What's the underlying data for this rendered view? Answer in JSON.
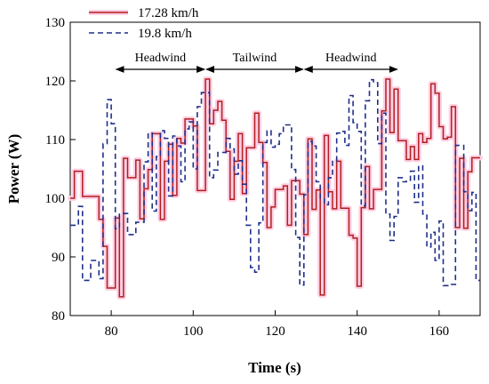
{
  "chart_data": {
    "type": "line",
    "xlabel": "Time (s)",
    "ylabel": "Power (W)",
    "xlim": [
      70,
      170
    ],
    "ylim": [
      80,
      130
    ],
    "x_ticks": [
      80,
      100,
      120,
      140,
      160
    ],
    "y_ticks": [
      80,
      90,
      100,
      110,
      120,
      130
    ],
    "grid": false,
    "legend_position": "top-left",
    "series": [
      {
        "name": "17.28 km/h",
        "color": "#b01e1e",
        "halo_color": "#ffcfe4",
        "line_style": "solid",
        "step": true,
        "points": [
          [
            70,
            100
          ],
          [
            71,
            104.6
          ],
          [
            73,
            100.3
          ],
          [
            77,
            96.4
          ],
          [
            78,
            91.8
          ],
          [
            79,
            84.7
          ],
          [
            81,
            96.6
          ],
          [
            82,
            83.2
          ],
          [
            83,
            106.8
          ],
          [
            84,
            103.5
          ],
          [
            86,
            106.5
          ],
          [
            87,
            96.5
          ],
          [
            88,
            101.6
          ],
          [
            89,
            104.9
          ],
          [
            90,
            111
          ],
          [
            92,
            96.4
          ],
          [
            93,
            106.3
          ],
          [
            94,
            109.2
          ],
          [
            95,
            100.5
          ],
          [
            96,
            110.2
          ],
          [
            97,
            109.4
          ],
          [
            98,
            113.5
          ],
          [
            100,
            112.3
          ],
          [
            101,
            101.3
          ],
          [
            103,
            120.3
          ],
          [
            104,
            112.7
          ],
          [
            105,
            115
          ],
          [
            106,
            116.5
          ],
          [
            107,
            113.3
          ],
          [
            108,
            108
          ],
          [
            109,
            99.8
          ],
          [
            110,
            106.3
          ],
          [
            111,
            111
          ],
          [
            112,
            100.8
          ],
          [
            113,
            108.6
          ],
          [
            115,
            114.5
          ],
          [
            116,
            109.5
          ],
          [
            117,
            106.1
          ],
          [
            118,
            95
          ],
          [
            119,
            98.5
          ],
          [
            120,
            101.5
          ],
          [
            122,
            102.1
          ],
          [
            123,
            95.4
          ],
          [
            124,
            103
          ],
          [
            126,
            100.7
          ],
          [
            127,
            93.8
          ],
          [
            128,
            110.1
          ],
          [
            129,
            98.1
          ],
          [
            130,
            101.4
          ],
          [
            131,
            83.5
          ],
          [
            132,
            110.7
          ],
          [
            133,
            101.1
          ],
          [
            134,
            98.2
          ],
          [
            135,
            106.3
          ],
          [
            136,
            98.3
          ],
          [
            138,
            93.7
          ],
          [
            139,
            93.2
          ],
          [
            140,
            85
          ],
          [
            141,
            98.4
          ],
          [
            142,
            105.4
          ],
          [
            143,
            98.2
          ],
          [
            144,
            101.5
          ],
          [
            146,
            114.9
          ],
          [
            147,
            120.3
          ],
          [
            148,
            111.2
          ],
          [
            149,
            118.6
          ],
          [
            150,
            109.8
          ],
          [
            152,
            106.6
          ],
          [
            153,
            108.8
          ],
          [
            154,
            106.6
          ],
          [
            155,
            111
          ],
          [
            156,
            109.5
          ],
          [
            157,
            110.2
          ],
          [
            158,
            119.5
          ],
          [
            159,
            117.9
          ],
          [
            160,
            112.2
          ],
          [
            161,
            110.1
          ],
          [
            162,
            110.4
          ],
          [
            163,
            115.6
          ],
          [
            164,
            95
          ],
          [
            165,
            106.8
          ],
          [
            166,
            94.9
          ],
          [
            167,
            104.5
          ],
          [
            168,
            106.9
          ],
          [
            170,
            106.9
          ]
        ]
      },
      {
        "name": "19.8 km/h",
        "color": "#1f2f8a",
        "line_style": "dashed",
        "step": true,
        "points": [
          [
            70,
            95.4
          ],
          [
            72,
            98.6
          ],
          [
            73,
            86
          ],
          [
            75,
            89.4
          ],
          [
            77,
            86.3
          ],
          [
            78,
            109.3
          ],
          [
            79,
            116.8
          ],
          [
            80,
            112.7
          ],
          [
            81,
            94.8
          ],
          [
            82,
            97.4
          ],
          [
            84,
            93.8
          ],
          [
            86,
            95.9
          ],
          [
            88,
            106.2
          ],
          [
            89,
            111.1
          ],
          [
            90,
            97.8
          ],
          [
            91,
            107.1
          ],
          [
            92,
            111.5
          ],
          [
            93,
            110.2
          ],
          [
            94,
            100.4
          ],
          [
            95,
            110.6
          ],
          [
            96,
            108.9
          ],
          [
            97,
            102.8
          ],
          [
            98,
            111.8
          ],
          [
            99,
            113
          ],
          [
            100,
            105
          ],
          [
            101,
            115.6
          ],
          [
            102,
            118
          ],
          [
            104,
            103.5
          ],
          [
            105,
            104.8
          ],
          [
            106,
            107.8
          ],
          [
            108,
            110.2
          ],
          [
            109,
            108.4
          ],
          [
            110,
            104.1
          ],
          [
            111,
            106.4
          ],
          [
            112,
            102.4
          ],
          [
            113,
            95.4
          ],
          [
            114,
            88.2
          ],
          [
            115,
            87.4
          ],
          [
            116,
            95.8
          ],
          [
            117,
            109.5
          ],
          [
            118,
            111.5
          ],
          [
            119,
            108.7
          ],
          [
            120,
            109.2
          ],
          [
            121,
            111
          ],
          [
            122,
            112.5
          ],
          [
            124,
            104.9
          ],
          [
            125,
            93.3
          ],
          [
            126,
            85.2
          ],
          [
            127,
            100.6
          ],
          [
            128,
            109.7
          ],
          [
            129,
            108.9
          ],
          [
            130,
            102.8
          ],
          [
            131,
            100
          ],
          [
            132,
            98.9
          ],
          [
            133,
            103.5
          ],
          [
            134,
            106.3
          ],
          [
            135,
            111.1
          ],
          [
            136,
            111.4
          ],
          [
            137,
            109
          ],
          [
            138,
            117.5
          ],
          [
            139,
            112.9
          ],
          [
            140,
            111.4
          ],
          [
            141,
            98.7
          ],
          [
            142,
            116.6
          ],
          [
            143,
            120.2
          ],
          [
            144,
            119.7
          ],
          [
            145,
            109.3
          ],
          [
            146,
            114.5
          ],
          [
            147,
            97.3
          ],
          [
            148,
            92.8
          ],
          [
            149,
            96.9
          ],
          [
            150,
            103.5
          ],
          [
            151,
            102.8
          ],
          [
            152,
            102.9
          ],
          [
            153,
            104.6
          ],
          [
            154,
            99.3
          ],
          [
            155,
            105.5
          ],
          [
            156,
            97.3
          ],
          [
            157,
            91.7
          ],
          [
            158,
            94.2
          ],
          [
            159,
            89.4
          ],
          [
            160,
            96.1
          ],
          [
            161,
            85.1
          ],
          [
            163,
            85.3
          ],
          [
            164,
            109
          ],
          [
            166,
            101.1
          ],
          [
            167,
            97.9
          ],
          [
            168,
            101
          ],
          [
            169,
            86
          ],
          [
            170,
            86
          ]
        ]
      }
    ],
    "annotations": [
      {
        "label": "Headwind",
        "x_start": 81,
        "x_end": 103
      },
      {
        "label": "Tailwind",
        "x_start": 103,
        "x_end": 127
      },
      {
        "label": "Headwind",
        "x_start": 127,
        "x_end": 150
      }
    ]
  }
}
